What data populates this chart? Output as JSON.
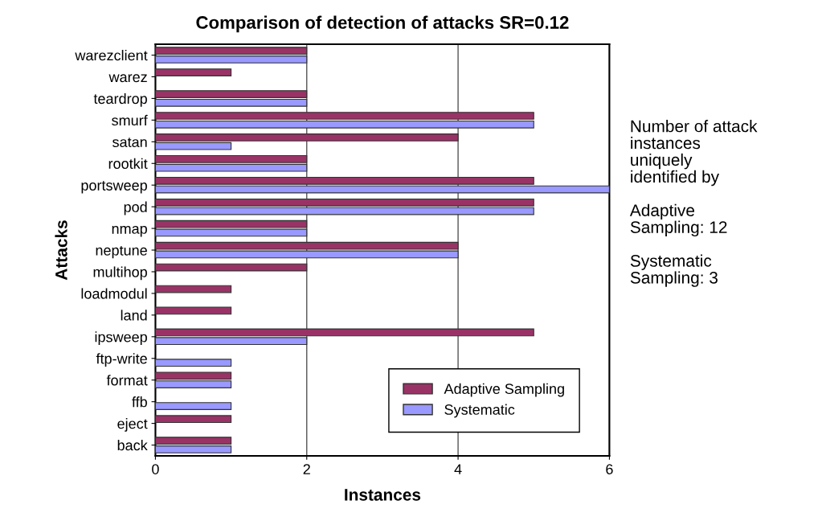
{
  "chart_data": {
    "type": "bar",
    "orientation": "horizontal",
    "title": "Comparison of detection of attacks SR=0.12",
    "xlabel": "Instances",
    "ylabel": "Attacks",
    "categories": [
      "warezclient",
      "warez",
      "teardrop",
      "smurf",
      "satan",
      "rootkit",
      "portsweep",
      "pod",
      "nmap",
      "neptune",
      "multihop",
      "loadmodul",
      "land",
      "ipsweep",
      "ftp-write",
      "format",
      "ffb",
      "eject",
      "back"
    ],
    "series": [
      {
        "name": "Adaptive Sampling",
        "color": "#993366",
        "values": [
          2,
          1,
          2,
          5,
          4,
          2,
          5,
          5,
          2,
          4,
          2,
          1,
          1,
          5,
          null,
          1,
          null,
          1,
          1
        ]
      },
      {
        "name": "Systematic",
        "color": "#9999ff",
        "values": [
          2,
          null,
          2,
          5,
          1,
          2,
          6,
          5,
          2,
          4,
          null,
          null,
          null,
          2,
          1,
          1,
          1,
          null,
          1
        ]
      }
    ],
    "xlim": [
      0,
      6
    ],
    "xticks": [
      0,
      2,
      4,
      6
    ],
    "grid": "x",
    "legend": "bottom right",
    "annotations": [
      "Number of attack\ninstances\nuniquely\nidentified by\n\nAdaptive\nSampling: 12\n\nSystematic\nSampling: 3"
    ]
  }
}
